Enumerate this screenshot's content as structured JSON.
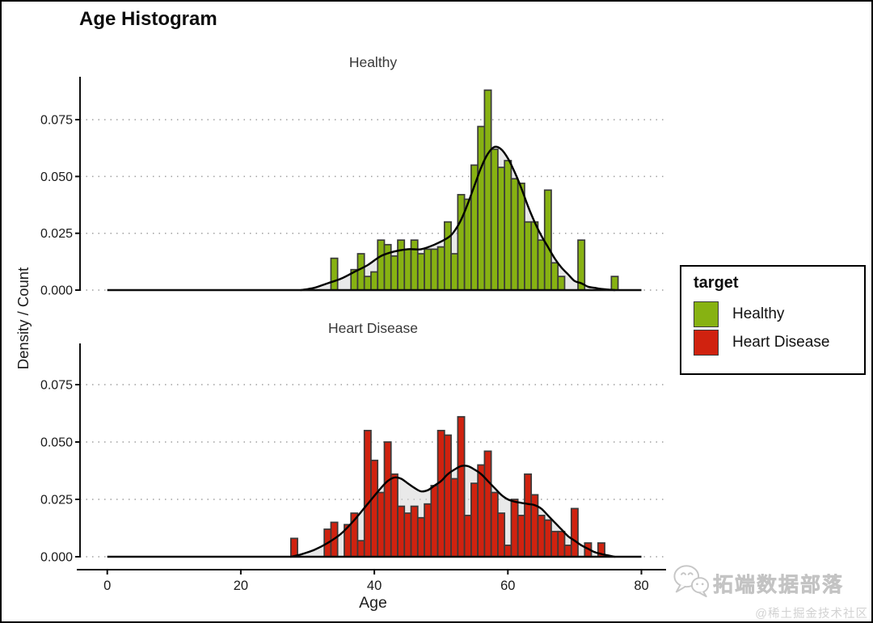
{
  "page": {
    "title": "Age Histogram"
  },
  "axes": {
    "x": {
      "label": "Age",
      "ticks": [
        0,
        20,
        40,
        60,
        80
      ]
    },
    "y": {
      "label": "Density / Count",
      "ticks": [
        "0.000",
        "0.025",
        "0.050",
        "0.075"
      ],
      "tick_values": [
        0,
        0.025,
        0.05,
        0.075
      ]
    }
  },
  "legend": {
    "title": "target",
    "items": [
      {
        "label": "Healthy",
        "color": "#87B212"
      },
      {
        "label": "Heart Disease",
        "color": "#D0220F"
      }
    ]
  },
  "watermark": {
    "icon": "wechat-icon",
    "brand": "拓端数据部落",
    "community": "@稀土掘金技术社区"
  },
  "colors": {
    "healthy_fill": "#87B212",
    "disease_fill": "#D0220F",
    "bar_outline": "#3A3A3A",
    "density_fill": "#D7D7D7",
    "curve": "#000000",
    "grid": "#A0A0A0",
    "axis": "#0D0D0D"
  },
  "chart_data": {
    "type": "bar",
    "subtype": "faceted-histogram-with-density",
    "title": "Age Histogram",
    "xlabel": "Age",
    "ylabel": "Density / Count",
    "xlim": [
      0,
      83.6
    ],
    "ylim": [
      0,
      0.094
    ],
    "binwidth": 1,
    "grid": "dotted-horizontal",
    "legend_title": "target",
    "legend_position": "right",
    "facets": [
      {
        "name": "healthy",
        "label": "Healthy",
        "color": "#87B212",
        "bars": [
          [
            34,
            0.014
          ],
          [
            37,
            0.009
          ],
          [
            38,
            0.016
          ],
          [
            39,
            0.006
          ],
          [
            40,
            0.008
          ],
          [
            41,
            0.022
          ],
          [
            42,
            0.02
          ],
          [
            43,
            0.015
          ],
          [
            44,
            0.022
          ],
          [
            45,
            0.018
          ],
          [
            46,
            0.022
          ],
          [
            47,
            0.016
          ],
          [
            48,
            0.018
          ],
          [
            49,
            0.018
          ],
          [
            50,
            0.019
          ],
          [
            51,
            0.03
          ],
          [
            52,
            0.016
          ],
          [
            53,
            0.042
          ],
          [
            54,
            0.04
          ],
          [
            55,
            0.055
          ],
          [
            56,
            0.072
          ],
          [
            57,
            0.088
          ],
          [
            58,
            0.062
          ],
          [
            59,
            0.054
          ],
          [
            60,
            0.057
          ],
          [
            61,
            0.049
          ],
          [
            62,
            0.047
          ],
          [
            63,
            0.03
          ],
          [
            64,
            0.03
          ],
          [
            65,
            0.022
          ],
          [
            66,
            0.044
          ],
          [
            67,
            0.012
          ],
          [
            68,
            0.006
          ],
          [
            71,
            0.022
          ],
          [
            76,
            0.006
          ]
        ],
        "curve": [
          [
            29,
            0
          ],
          [
            31,
            0.001
          ],
          [
            33,
            0.003
          ],
          [
            35,
            0.005
          ],
          [
            37,
            0.008
          ],
          [
            39,
            0.011
          ],
          [
            41,
            0.015
          ],
          [
            43,
            0.017
          ],
          [
            45,
            0.018
          ],
          [
            47,
            0.018
          ],
          [
            49,
            0.02
          ],
          [
            51,
            0.023
          ],
          [
            52,
            0.026
          ],
          [
            53,
            0.031
          ],
          [
            54,
            0.038
          ],
          [
            55,
            0.046
          ],
          [
            56,
            0.054
          ],
          [
            57,
            0.06
          ],
          [
            58,
            0.063
          ],
          [
            59,
            0.062
          ],
          [
            60,
            0.058
          ],
          [
            61,
            0.052
          ],
          [
            62,
            0.045
          ],
          [
            63,
            0.037
          ],
          [
            64,
            0.03
          ],
          [
            65,
            0.024
          ],
          [
            66,
            0.019
          ],
          [
            67,
            0.014
          ],
          [
            68,
            0.01
          ],
          [
            69,
            0.007
          ],
          [
            70,
            0.004
          ],
          [
            71,
            0.003
          ],
          [
            72,
            0.0015
          ],
          [
            73,
            0.001
          ],
          [
            74,
            0.0005
          ],
          [
            76,
            0
          ]
        ]
      },
      {
        "name": "heart-disease",
        "label": "Heart Disease",
        "color": "#D0220F",
        "bars": [
          [
            28,
            0.008
          ],
          [
            33,
            0.012
          ],
          [
            34,
            0.015
          ],
          [
            36,
            0.014
          ],
          [
            37,
            0.019
          ],
          [
            38,
            0.007
          ],
          [
            39,
            0.055
          ],
          [
            40,
            0.042
          ],
          [
            41,
            0.028
          ],
          [
            42,
            0.05
          ],
          [
            43,
            0.036
          ],
          [
            44,
            0.022
          ],
          [
            45,
            0.019
          ],
          [
            46,
            0.022
          ],
          [
            47,
            0.017
          ],
          [
            48,
            0.023
          ],
          [
            49,
            0.031
          ],
          [
            50,
            0.055
          ],
          [
            51,
            0.053
          ],
          [
            52,
            0.034
          ],
          [
            53,
            0.061
          ],
          [
            54,
            0.018
          ],
          [
            55,
            0.032
          ],
          [
            56,
            0.04
          ],
          [
            57,
            0.046
          ],
          [
            58,
            0.028
          ],
          [
            59,
            0.019
          ],
          [
            60,
            0.005
          ],
          [
            61,
            0.025
          ],
          [
            62,
            0.018
          ],
          [
            63,
            0.036
          ],
          [
            64,
            0.027
          ],
          [
            65,
            0.018
          ],
          [
            66,
            0.016
          ],
          [
            67,
            0.011
          ],
          [
            68,
            0.011
          ],
          [
            69,
            0.005
          ],
          [
            70,
            0.021
          ],
          [
            72,
            0.006
          ],
          [
            74,
            0.006
          ]
        ],
        "curve": [
          [
            27.5,
            0
          ],
          [
            29,
            0.001
          ],
          [
            31,
            0.003
          ],
          [
            33,
            0.006
          ],
          [
            35,
            0.01
          ],
          [
            37,
            0.016
          ],
          [
            39,
            0.023
          ],
          [
            41,
            0.03
          ],
          [
            42,
            0.033
          ],
          [
            43,
            0.0345
          ],
          [
            44,
            0.034
          ],
          [
            45,
            0.032
          ],
          [
            46,
            0.03
          ],
          [
            47,
            0.0285
          ],
          [
            48,
            0.029
          ],
          [
            49,
            0.031
          ],
          [
            50,
            0.033
          ],
          [
            51,
            0.036
          ],
          [
            52,
            0.038
          ],
          [
            53,
            0.0395
          ],
          [
            54,
            0.0395
          ],
          [
            55,
            0.038
          ],
          [
            56,
            0.036
          ],
          [
            57,
            0.033
          ],
          [
            58,
            0.03
          ],
          [
            59,
            0.027
          ],
          [
            60,
            0.025
          ],
          [
            61,
            0.024
          ],
          [
            62,
            0.0235
          ],
          [
            63,
            0.023
          ],
          [
            64,
            0.0225
          ],
          [
            65,
            0.021
          ],
          [
            66,
            0.018
          ],
          [
            67,
            0.015
          ],
          [
            68,
            0.012
          ],
          [
            69,
            0.009
          ],
          [
            70,
            0.007
          ],
          [
            71,
            0.005
          ],
          [
            72,
            0.0035
          ],
          [
            73,
            0.002
          ],
          [
            74,
            0.0012
          ],
          [
            75,
            0.0006
          ],
          [
            76,
            0
          ]
        ]
      }
    ]
  }
}
